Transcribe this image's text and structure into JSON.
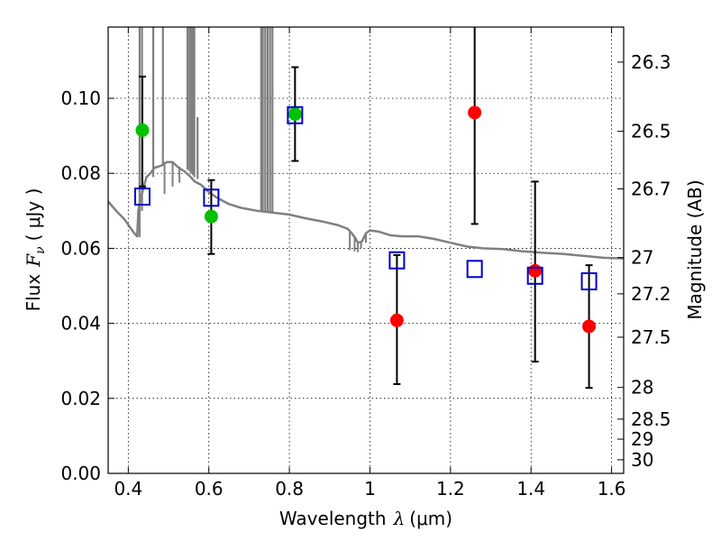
{
  "chart_data": {
    "type": "scatter",
    "xlabel_main": "Wavelength",
    "xlabel_symbol": "λ",
    "xlabel_unit": "(μm)",
    "ylabel_main": "Flux",
    "ylabel_symbol": "F",
    "ylabel_sub": "ν",
    "ylabel_unit": "( μJy )",
    "ylabel_right": "Magnitude (AB)",
    "xlim": [
      0.35,
      1.63
    ],
    "ylim": [
      0.0,
      0.119
    ],
    "grid": true,
    "x_ticks": [
      0.4,
      0.6,
      0.8,
      1.0,
      1.2,
      1.4,
      1.6
    ],
    "x_tick_labels": [
      "0.4",
      "0.6",
      "0.8",
      "1",
      "1.2",
      "1.4",
      "1.6"
    ],
    "y_ticks": [
      0.0,
      0.02,
      0.04,
      0.06,
      0.08,
      0.1
    ],
    "y_tick_labels": [
      "0.00",
      "0.02",
      "0.04",
      "0.06",
      "0.08",
      "0.10"
    ],
    "mag_ticks": [
      26.3,
      26.5,
      26.7,
      27,
      27.2,
      27.5,
      28,
      28.5,
      29,
      30
    ],
    "mag_tick_labels": [
      "26.3",
      "26.5",
      "26.7",
      "27",
      "27.2",
      "27.5",
      "28",
      "28.5",
      "29",
      "30"
    ],
    "series": [
      {
        "kind": "green_points",
        "color": "#00c000",
        "points": [
          {
            "x": 0.435,
            "y": 0.0915,
            "ylo": 0.0765,
            "yhi": 0.1058
          },
          {
            "x": 0.606,
            "y": 0.0685,
            "ylo": 0.0585,
            "yhi": 0.0782
          },
          {
            "x": 0.814,
            "y": 0.0958,
            "ylo": 0.0833,
            "yhi": 0.1083
          }
        ]
      },
      {
        "kind": "red_points",
        "color": "#ff0000",
        "points": [
          {
            "x": 1.067,
            "y": 0.0408,
            "ylo": 0.0238,
            "yhi": 0.0582
          },
          {
            "x": 1.26,
            "y": 0.0962,
            "ylo": 0.0665,
            "yhi": 0.119
          },
          {
            "x": 1.41,
            "y": 0.054,
            "ylo": 0.0298,
            "yhi": 0.0778
          },
          {
            "x": 1.544,
            "y": 0.0392,
            "ylo": 0.0228,
            "yhi": 0.0555
          }
        ]
      },
      {
        "kind": "model_boxes",
        "color": "#0000cc",
        "points": [
          {
            "x": 0.435,
            "y": 0.0738
          },
          {
            "x": 0.606,
            "y": 0.0735
          },
          {
            "x": 0.814,
            "y": 0.0955
          },
          {
            "x": 1.067,
            "y": 0.0568
          },
          {
            "x": 1.26,
            "y": 0.0545
          },
          {
            "x": 1.41,
            "y": 0.0527
          },
          {
            "x": 1.544,
            "y": 0.0512
          }
        ]
      }
    ],
    "model_spectrum": {
      "color": "#808080",
      "points": [
        [
          0.35,
          0.0725
        ],
        [
          0.37,
          0.07
        ],
        [
          0.39,
          0.0678
        ],
        [
          0.405,
          0.0655
        ],
        [
          0.415,
          0.064
        ],
        [
          0.422,
          0.0632
        ],
        [
          0.425,
          0.07
        ],
        [
          0.43,
          0.073
        ],
        [
          0.445,
          0.079
        ],
        [
          0.455,
          0.08
        ],
        [
          0.465,
          0.0815
        ],
        [
          0.475,
          0.0818
        ],
        [
          0.485,
          0.0822
        ],
        [
          0.495,
          0.083
        ],
        [
          0.51,
          0.083
        ],
        [
          0.525,
          0.0815
        ],
        [
          0.54,
          0.0805
        ],
        [
          0.555,
          0.079
        ],
        [
          0.565,
          0.0778
        ],
        [
          0.58,
          0.077
        ],
        [
          0.6,
          0.075
        ],
        [
          0.62,
          0.0735
        ],
        [
          0.65,
          0.0718
        ],
        [
          0.68,
          0.0708
        ],
        [
          0.72,
          0.07
        ],
        [
          0.76,
          0.0695
        ],
        [
          0.8,
          0.069
        ],
        [
          0.84,
          0.068
        ],
        [
          0.88,
          0.0672
        ],
        [
          0.92,
          0.0662
        ],
        [
          0.945,
          0.0652
        ],
        [
          0.955,
          0.064
        ],
        [
          0.965,
          0.0625
        ],
        [
          0.97,
          0.0615
        ],
        [
          0.98,
          0.0618
        ],
        [
          0.99,
          0.064
        ],
        [
          1.0,
          0.0648
        ],
        [
          1.02,
          0.0645
        ],
        [
          1.05,
          0.0635
        ],
        [
          1.08,
          0.0632
        ],
        [
          1.12,
          0.0632
        ],
        [
          1.16,
          0.0625
        ],
        [
          1.2,
          0.0615
        ],
        [
          1.24,
          0.0605
        ],
        [
          1.28,
          0.06
        ],
        [
          1.33,
          0.0598
        ],
        [
          1.38,
          0.0592
        ],
        [
          1.43,
          0.0588
        ],
        [
          1.48,
          0.0585
        ],
        [
          1.53,
          0.058
        ],
        [
          1.58,
          0.0575
        ],
        [
          1.63,
          0.0573
        ]
      ],
      "spikes": [
        [
          0.428,
          0.063,
          0.119
        ],
        [
          0.434,
          0.07,
          0.119
        ],
        [
          0.462,
          0.079,
          0.119
        ],
        [
          0.486,
          0.082,
          0.119
        ],
        [
          0.547,
          0.081,
          0.119
        ],
        [
          0.552,
          0.0805,
          0.119
        ],
        [
          0.556,
          0.08,
          0.119
        ],
        [
          0.56,
          0.0795,
          0.119
        ],
        [
          0.564,
          0.079,
          0.119
        ],
        [
          0.572,
          0.0785,
          0.095
        ],
        [
          0.73,
          0.0698,
          0.119
        ],
        [
          0.734,
          0.0697,
          0.119
        ],
        [
          0.74,
          0.0697,
          0.119
        ],
        [
          0.746,
          0.0696,
          0.119
        ],
        [
          0.752,
          0.0696,
          0.119
        ],
        [
          0.758,
          0.0696,
          0.119
        ]
      ],
      "dips": [
        [
          0.49,
          0.083,
          0.0745
        ],
        [
          0.51,
          0.0828,
          0.0765
        ],
        [
          0.527,
          0.0818,
          0.0775
        ],
        [
          0.95,
          0.0648,
          0.0595
        ],
        [
          0.962,
          0.0632,
          0.0592
        ],
        [
          0.97,
          0.0618,
          0.059
        ],
        [
          0.978,
          0.062,
          0.06
        ],
        [
          0.99,
          0.064,
          0.0615
        ]
      ]
    }
  }
}
